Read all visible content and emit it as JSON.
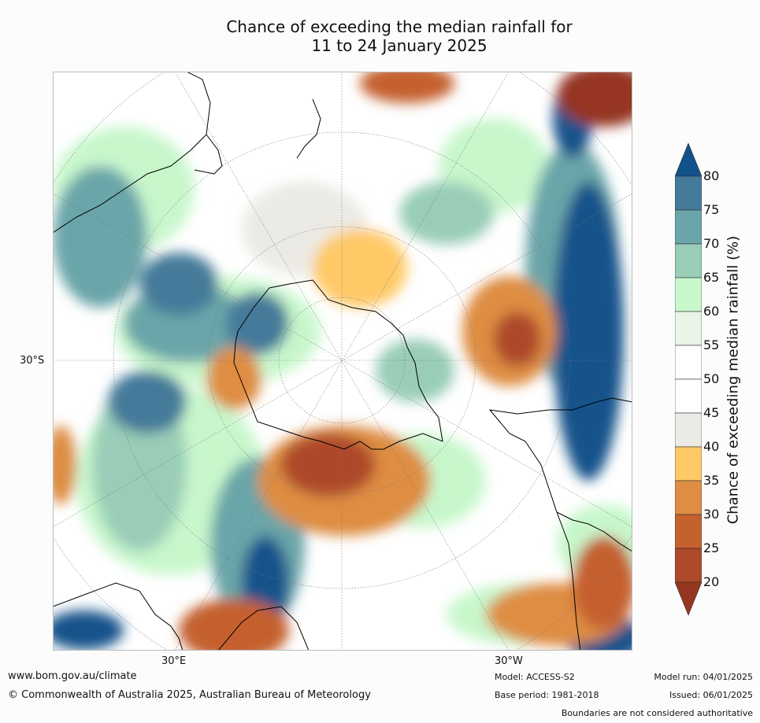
{
  "title": {
    "line1": "Chance of exceeding the median rainfall for",
    "line2": "11 to 24 January 2025"
  },
  "map": {
    "projection": "south-polar-stereographic",
    "lat_labels": [
      "30°S"
    ],
    "lon_labels": [
      "30°E",
      "30°W"
    ]
  },
  "colorbar": {
    "label": "Chance of exceeding median rainfall (%)",
    "ticks": [
      "20",
      "25",
      "30",
      "35",
      "40",
      "45",
      "50",
      "55",
      "60",
      "65",
      "70",
      "75",
      "80"
    ],
    "bins": [
      {
        "range": "<20",
        "color": "#953620"
      },
      {
        "range": "20-25",
        "color": "#ad4a29"
      },
      {
        "range": "25-30",
        "color": "#c5612f"
      },
      {
        "range": "30-35",
        "color": "#de8d43"
      },
      {
        "range": "35-40",
        "color": "#ffc966"
      },
      {
        "range": "40-45",
        "color": "#eceae4"
      },
      {
        "range": "45-50",
        "color": "#ffffff"
      },
      {
        "range": "50-55",
        "color": "#ffffff"
      },
      {
        "range": "55-60",
        "color": "#eaf5e8"
      },
      {
        "range": "60-65",
        "color": "#c8f7cc"
      },
      {
        "range": "65-70",
        "color": "#99cdb7"
      },
      {
        "range": "70-75",
        "color": "#6aa5a9"
      },
      {
        "range": "75-80",
        "color": "#447a9a"
      },
      {
        "range": ">80",
        "color": "#12528b"
      }
    ]
  },
  "footer": {
    "website": "www.bom.gov.au/climate",
    "copyright": "© Commonwealth of Australia 2025, Australian Bureau of Meteorology",
    "model": "Model: ACCESS-S2",
    "base_period": "Base period: 1981-2018",
    "model_run": "Model run: 04/01/2025",
    "issued": "Issued: 06/01/2025",
    "disclaimer": "Boundaries are not considered authoritative"
  }
}
